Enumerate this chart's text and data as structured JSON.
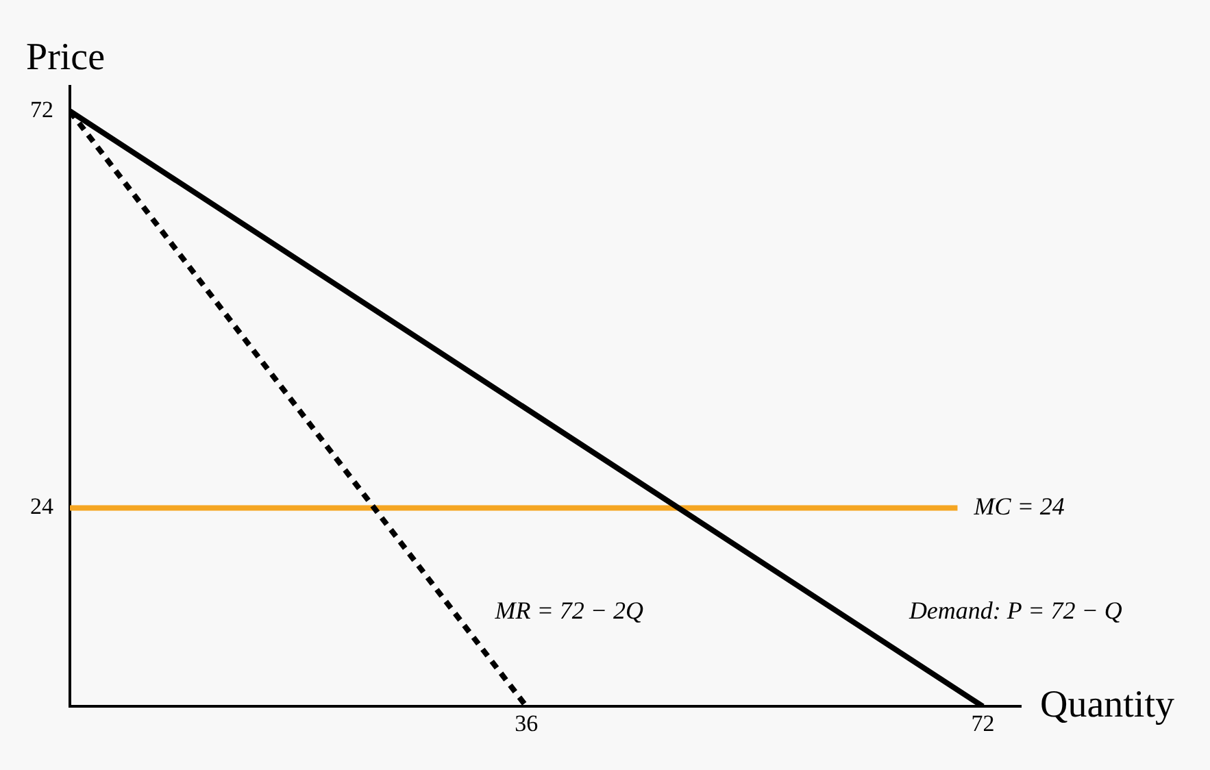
{
  "chart_data": {
    "type": "line",
    "xlabel": "Quantity",
    "ylabel": "Price",
    "xlim": [
      0,
      75
    ],
    "ylim": [
      0,
      75
    ],
    "xticks": [
      36,
      72
    ],
    "yticks": [
      24,
      72
    ],
    "grid": false,
    "legend": false,
    "marker": "none",
    "series": [
      {
        "name": "Demand: P = 72 − Q",
        "color": "#000000",
        "x": [
          0,
          72
        ],
        "values": [
          72,
          0
        ],
        "line_style": "solid"
      },
      {
        "name": "MR = 72 − 2Q",
        "color": "#000000",
        "x": [
          0,
          36
        ],
        "values": [
          72,
          0
        ],
        "line_style": "dashed"
      },
      {
        "name": "MC = 24",
        "color": "#f5a623",
        "x": [
          0,
          70
        ],
        "values": [
          24,
          24
        ],
        "line_style": "solid"
      }
    ]
  }
}
